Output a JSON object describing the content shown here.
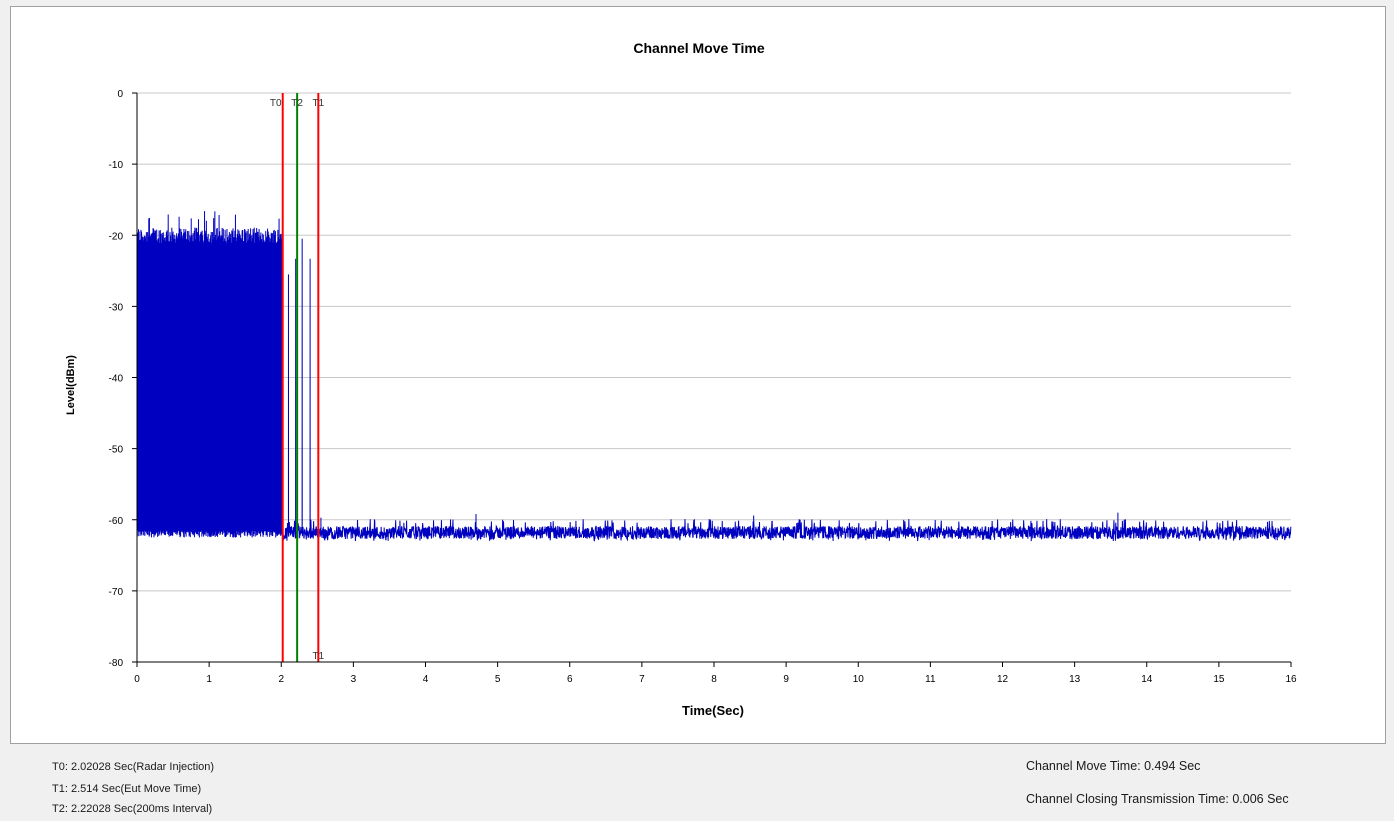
{
  "chart_data": {
    "type": "line",
    "title": "Channel Move Time",
    "xlabel": "Time(Sec)",
    "ylabel": "Level(dBm)",
    "xlim": [
      0,
      16
    ],
    "ylim": [
      -80,
      0
    ],
    "x_ticks": [
      "0",
      "1",
      "2",
      "3",
      "4",
      "5",
      "6",
      "7",
      "8",
      "9",
      "10",
      "11",
      "12",
      "13",
      "14",
      "15",
      "16"
    ],
    "y_ticks": [
      "0",
      "-10",
      "-20",
      "-30",
      "-40",
      "-50",
      "-60",
      "-70",
      "-80"
    ],
    "grid": "horizontal",
    "colors": {
      "trace": "#0000c0",
      "marker_t0": "#ff0000",
      "marker_t1": "#ff0000",
      "marker_t2": "#008000"
    },
    "series": [
      {
        "segments": [
          {
            "x_range": [
              0.0,
              2.02
            ],
            "description_level": "dense pulses",
            "high": -20.5,
            "low": -62.5,
            "peak_max": -18.0
          },
          {
            "x_range": [
              2.02,
              16.0
            ],
            "noise_floor_mean": -61.8,
            "noise_floor_range": [
              -63.0,
              -60.5
            ]
          }
        ],
        "spikes": [
          {
            "x": 2.1,
            "y": -25.5
          },
          {
            "x": 2.2,
            "y": -23.3
          },
          {
            "x": 2.29,
            "y": -20.5
          },
          {
            "x": 2.4,
            "y": -23.3
          },
          {
            "x": 2.55,
            "y": -59.7
          },
          {
            "x": 4.7,
            "y": -59.2
          },
          {
            "x": 8.55,
            "y": -59.4
          },
          {
            "x": 13.6,
            "y": -59.0
          }
        ]
      }
    ],
    "markers": [
      {
        "id": "T0",
        "x": 2.02028,
        "top_label": "T0",
        "bottom_label": ""
      },
      {
        "id": "T2",
        "x": 2.22028,
        "top_label": "T2",
        "bottom_label": ""
      },
      {
        "id": "T1",
        "x": 2.514,
        "top_label": "T1",
        "bottom_label": "T1"
      }
    ]
  },
  "info": {
    "t0": "T0: 2.02028 Sec(Radar Injection)",
    "t1": "T1: 2.514 Sec(Eut Move Time)",
    "t2": "T2: 2.22028 Sec(200ms Interval)",
    "channel_move_time": "Channel Move Time: 0.494 Sec",
    "channel_closing": "Channel Closing Transmission Time: 0.006 Sec"
  }
}
